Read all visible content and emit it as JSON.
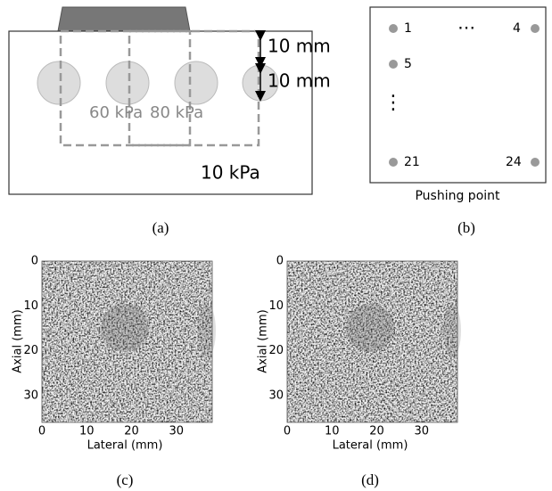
{
  "panel_a": {
    "top_label": "10 mm",
    "bottom_label": "10 mm",
    "inclusion_left": "60 kPa",
    "inclusion_right": "80 kPa",
    "background": "10 kPa",
    "caption": "(a)"
  },
  "panel_b": {
    "points": [
      "1",
      "4",
      "5",
      "21",
      "24"
    ],
    "h_ellipsis": "⋯",
    "v_ellipsis": "⋮",
    "title": "Pushing point",
    "caption": "(b)"
  },
  "panel_c": {
    "y_label": "Axial (mm)",
    "x_label": "Lateral (mm)",
    "yticks": [
      0,
      10,
      20,
      30
    ],
    "xticks": [
      0,
      10,
      20,
      30
    ],
    "caption": "(c)"
  },
  "panel_d": {
    "y_label": "Axial (mm)",
    "x_label": "Lateral (mm)",
    "yticks": [
      0,
      10,
      20,
      30
    ],
    "xticks": [
      0,
      10,
      20,
      30
    ],
    "caption": "(d)"
  }
}
